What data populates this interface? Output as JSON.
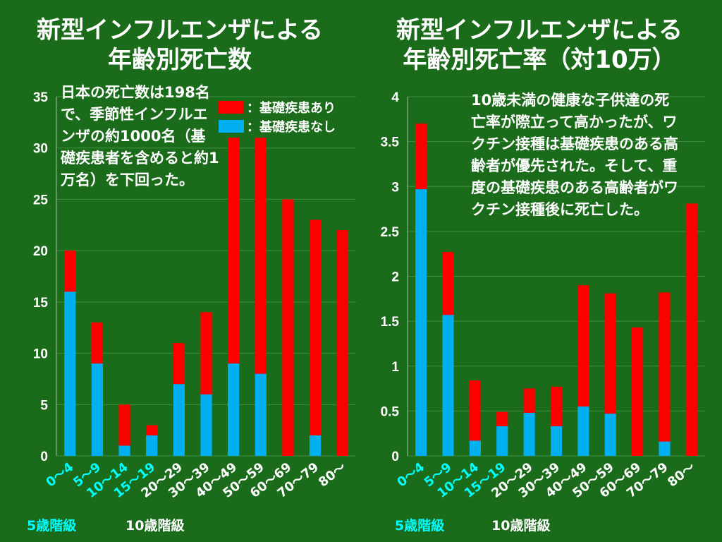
{
  "titles": {
    "left_line1": "新型インフルエンザによる",
    "left_line2": "年齢別死亡数",
    "right_line1": "新型インフルエンザによる",
    "right_line2": "年齢別死亡率（対10万）"
  },
  "annotations": {
    "left": "日本の死亡数は198名で、季節性インフルエンザの約1000名（基礎疾患者を含めると約1万名）を下回った。",
    "right": "10歳未満の健康な子供達の死亡率が際立って高かったが、ワクチン接種は基礎疾患のある高齢者が優先された。そして、重度の基礎疾患のある高齢者がワクチン接種後に死亡した。"
  },
  "legend": {
    "with": "：基礎疾患あり",
    "without": "：基礎疾患なし"
  },
  "footer": {
    "five_label": "5歳階級",
    "ten_label": "10歳階級"
  },
  "colors": {
    "background": "#1a6b1a",
    "with_condition": "#ff0000",
    "without_condition": "#00b0f0",
    "five_year_label": "#00ffff",
    "ten_year_label": "#ffffff",
    "text": "#ffffff"
  },
  "chart_data": [
    {
      "type": "bar",
      "stacked": true,
      "categories": [
        "0～4",
        "5～9",
        "10～14",
        "15～19",
        "20～29",
        "30～39",
        "40～49",
        "50～59",
        "60～69",
        "70～79",
        "80～"
      ],
      "category_groups": [
        "5",
        "5",
        "5",
        "5",
        "10",
        "10",
        "10",
        "10",
        "10",
        "10",
        "10"
      ],
      "series": [
        {
          "name": "：基礎疾患なし",
          "values": [
            16,
            9,
            1,
            2,
            7,
            6,
            9,
            8,
            0,
            2,
            0
          ]
        },
        {
          "name": "：基礎疾患あり",
          "values": [
            4,
            4,
            4,
            1,
            4,
            8,
            22,
            23,
            25,
            21,
            22
          ]
        }
      ],
      "ylim": [
        0,
        35
      ],
      "yticks": [
        0,
        5,
        10,
        15,
        20,
        25,
        30,
        35
      ],
      "grid": true,
      "legend": "top-right"
    },
    {
      "type": "bar",
      "stacked": true,
      "categories": [
        "0～4",
        "5～9",
        "10～14",
        "15～19",
        "20～29",
        "30～39",
        "40～49",
        "50～59",
        "60～69",
        "70～79",
        "80～"
      ],
      "category_groups": [
        "5",
        "5",
        "5",
        "5",
        "10",
        "10",
        "10",
        "10",
        "10",
        "10",
        "10"
      ],
      "series": [
        {
          "name": "：基礎疾患なし",
          "values": [
            2.97,
            1.57,
            0.17,
            0.33,
            0.48,
            0.33,
            0.55,
            0.47,
            0,
            0.16,
            0
          ]
        },
        {
          "name": "：基礎疾患あり",
          "values": [
            0.73,
            0.7,
            0.67,
            0.16,
            0.27,
            0.44,
            1.35,
            1.34,
            1.43,
            1.66,
            2.81
          ]
        }
      ],
      "ylim": [
        0,
        4
      ],
      "yticks": [
        "0",
        "0.5",
        "1",
        "1.5",
        "2",
        "2.5",
        "3",
        "3.5",
        "4"
      ],
      "grid": true
    }
  ]
}
